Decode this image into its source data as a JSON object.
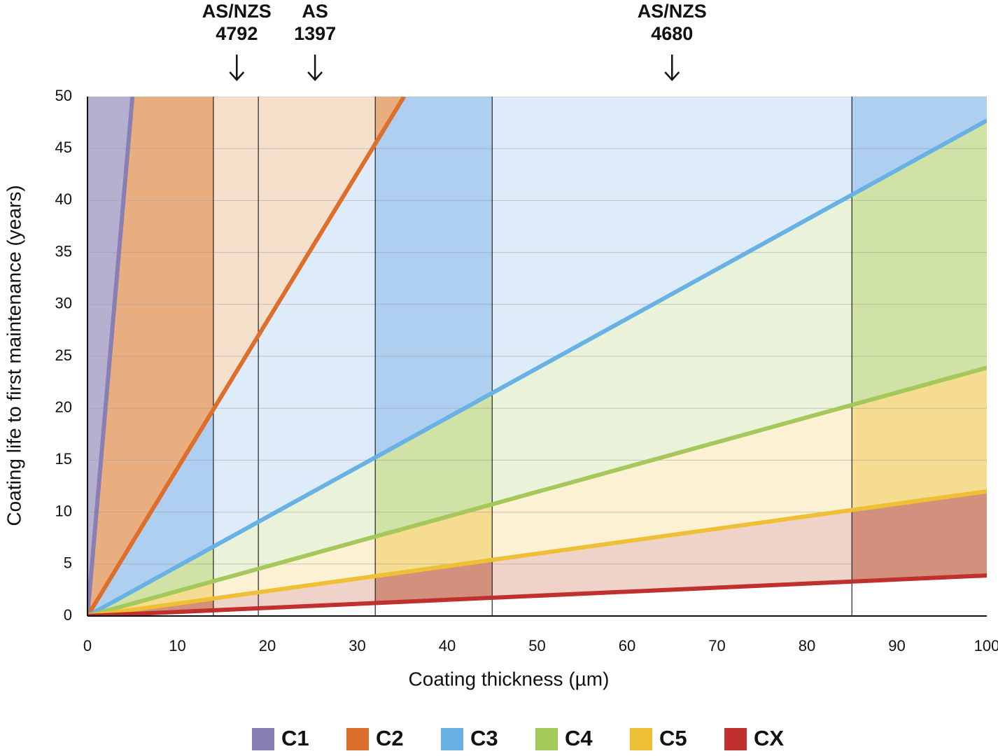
{
  "chart_data": {
    "type": "line",
    "x_label": "Coating thickness (µm)",
    "y_label": "Coating life to first maintenance (years)",
    "xlim": [
      0,
      100
    ],
    "ylim": [
      0,
      50
    ],
    "xticks": [
      0,
      10,
      20,
      30,
      40,
      50,
      60,
      70,
      80,
      90,
      100
    ],
    "yticks": [
      0,
      5,
      10,
      15,
      20,
      25,
      30,
      35,
      40,
      45,
      50
    ],
    "grid": true,
    "series": [
      {
        "name": "C1",
        "color": "#8a7fb3",
        "fill_light": "#b5afd0",
        "fill_dark": "#b5afd0",
        "x": [
          0,
          5
        ],
        "values": [
          0,
          50
        ]
      },
      {
        "name": "C2",
        "color": "#dd6e2c",
        "fill_light": "#f5e0cc",
        "fill_dark": "#e8ae80",
        "x": [
          0,
          35.2
        ],
        "values": [
          0,
          50
        ]
      },
      {
        "name": "C3",
        "color": "#68b1e4",
        "fill_light": "#deebf8",
        "fill_dark": "#aecff0",
        "x": [
          0,
          100
        ],
        "values": [
          0,
          47.7
        ]
      },
      {
        "name": "C4",
        "color": "#a4c85a",
        "fill_light": "#eaf2d9",
        "fill_dark": "#d0e2a5",
        "x": [
          0,
          100
        ],
        "values": [
          0,
          23.9
        ]
      },
      {
        "name": "C5",
        "color": "#efbf35",
        "fill_light": "#fcf2d3",
        "fill_dark": "#f5dc90",
        "x": [
          0,
          100
        ],
        "values": [
          0,
          12
        ]
      },
      {
        "name": "CX",
        "color": "#c0302e",
        "fill_light": "#f0d3c8",
        "fill_dark": "#d3907c",
        "x": [
          0,
          100
        ],
        "values": [
          0,
          3.9
        ]
      }
    ],
    "dark_bands": [
      [
        0,
        14
      ],
      [
        32,
        45
      ],
      [
        85,
        100
      ]
    ],
    "vlines": [
      14,
      19,
      32,
      45,
      85
    ],
    "annotations": [
      {
        "lines": [
          "AS/NZS",
          "4792"
        ],
        "x": 16.6
      },
      {
        "lines": [
          "AS",
          "1397"
        ],
        "x": 25.3
      },
      {
        "lines": [
          "AS/NZS",
          "4680"
        ],
        "x": 65
      }
    ]
  }
}
